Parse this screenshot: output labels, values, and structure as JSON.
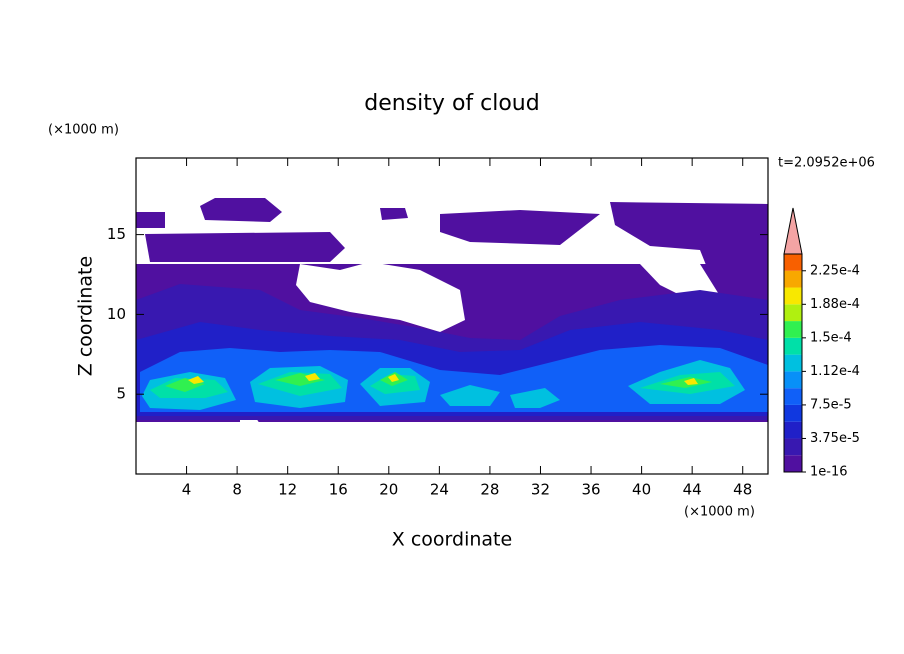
{
  "chart_data": {
    "type": "contour",
    "title": "density of cloud",
    "xlabel": "X coordinate",
    "ylabel": "Z coordinate",
    "x_unit": "(×1000 m)",
    "y_unit": "(×1000 m)",
    "time_label": "t=2.0952e+06",
    "xlim": [
      0,
      50
    ],
    "ylim": [
      0,
      19.8
    ],
    "xticks": [
      4,
      8,
      12,
      16,
      20,
      24,
      28,
      32,
      36,
      40,
      44,
      48
    ],
    "yticks": [
      5,
      10,
      15
    ],
    "colorbar": {
      "lim": [
        1e-16,
        0.00024375
      ],
      "levels": [
        1e-16,
        1.875e-05,
        3.75e-05,
        5.625e-05,
        7.5e-05,
        9.375e-05,
        0.0001125,
        0.00013125,
        0.00015,
        0.00016875,
        0.0001875,
        0.00020625,
        0.000225,
        0.00024375
      ],
      "colors": [
        "#5010a0",
        "#3818b0",
        "#2020c8",
        "#1038e0",
        "#1060f8",
        "#0890f8",
        "#00c0e0",
        "#00e0a8",
        "#30f050",
        "#b0f010",
        "#f8e800",
        "#f8a800",
        "#f86000"
      ],
      "extend_color": "#f4a4a4",
      "ticks": [
        1e-16,
        {
          "value": 3.75e-05,
          "label": "3.75e-5"
        },
        {
          "value": 7.5e-05,
          "label": "7.5e-5"
        },
        {
          "value": 0.0001125,
          "label": "1.12e-4"
        },
        {
          "value": 0.00015,
          "label": "1.5e-4"
        },
        {
          "value": 0.0001875,
          "label": "1.88e-4"
        },
        {
          "value": 0.000225,
          "label": "2.25e-4"
        }
      ]
    }
  }
}
